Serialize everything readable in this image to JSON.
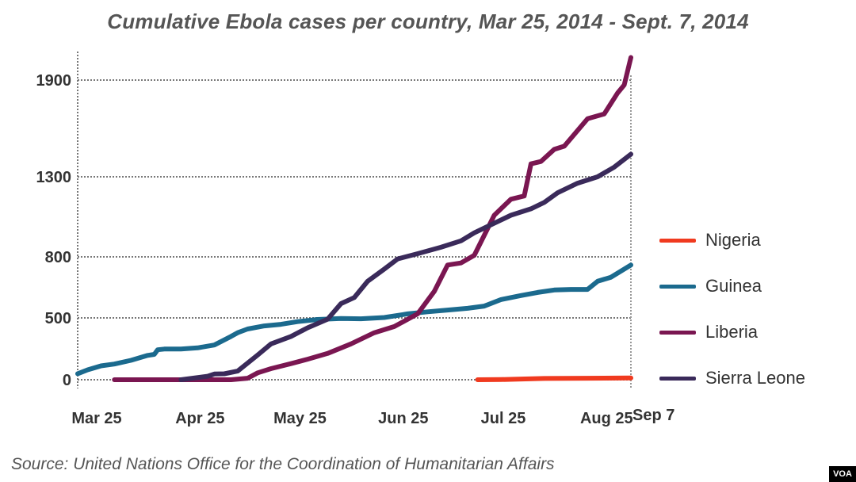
{
  "chart_data": {
    "type": "line",
    "title": "Cumulative Ebola cases per country, Mar 25, 2014 - Sept. 7, 2014",
    "xlabel": "",
    "ylabel": "",
    "xlim": [
      "2014-03-25",
      "2014-09-07"
    ],
    "x_ticks": [
      {
        "label": "Mar 25",
        "date": "2014-03-25"
      },
      {
        "label": "Apr 25",
        "date": "2014-04-25"
      },
      {
        "label": "May 25",
        "date": "2014-05-25"
      },
      {
        "label": "Jun 25",
        "date": "2014-06-25"
      },
      {
        "label": "Jul 25",
        "date": "2014-07-25"
      },
      {
        "label": "Aug 25",
        "date": "2014-08-25"
      },
      {
        "label": "Sep 7",
        "date": "2014-09-07"
      }
    ],
    "y_ticks": [
      0,
      500,
      800,
      1300,
      1900
    ],
    "grid": true,
    "legend_position": "right",
    "series": [
      {
        "name": "Nigeria",
        "color": "#f03a1f",
        "points": [
          [
            "2014-07-23",
            0
          ],
          [
            "2014-07-30",
            1
          ],
          [
            "2014-08-04",
            5
          ],
          [
            "2014-08-12",
            10
          ],
          [
            "2014-08-25",
            12
          ],
          [
            "2014-09-07",
            14
          ]
        ]
      },
      {
        "name": "Guinea",
        "color": "#1b6a8e",
        "points": [
          [
            "2014-03-25",
            49
          ],
          [
            "2014-03-28",
            80
          ],
          [
            "2014-04-01",
            112
          ],
          [
            "2014-04-05",
            127
          ],
          [
            "2014-04-10",
            157
          ],
          [
            "2014-04-15",
            197
          ],
          [
            "2014-04-17",
            205
          ],
          [
            "2014-04-18",
            242
          ],
          [
            "2014-04-20",
            248
          ],
          [
            "2014-04-25",
            248
          ],
          [
            "2014-04-30",
            258
          ],
          [
            "2014-05-05",
            281
          ],
          [
            "2014-05-10",
            350
          ],
          [
            "2014-05-12",
            380
          ],
          [
            "2014-05-15",
            410
          ],
          [
            "2014-05-20",
            435
          ],
          [
            "2014-05-25",
            448
          ],
          [
            "2014-05-30",
            470
          ],
          [
            "2014-06-05",
            487
          ],
          [
            "2014-06-12",
            495
          ],
          [
            "2014-06-18",
            493
          ],
          [
            "2014-06-25",
            502
          ],
          [
            "2014-07-02",
            520
          ],
          [
            "2014-07-08",
            530
          ],
          [
            "2014-07-15",
            540
          ],
          [
            "2014-07-20",
            547
          ],
          [
            "2014-07-25",
            558
          ],
          [
            "2014-07-30",
            590
          ],
          [
            "2014-08-05",
            610
          ],
          [
            "2014-08-10",
            625
          ],
          [
            "2014-08-15",
            637
          ],
          [
            "2014-08-20",
            640
          ],
          [
            "2014-08-25",
            640
          ],
          [
            "2014-08-28",
            680
          ],
          [
            "2014-09-01",
            700
          ],
          [
            "2014-09-07",
            760
          ]
        ]
      },
      {
        "name": "Liberia",
        "color": "#7a1651",
        "points": [
          [
            "2014-04-05",
            0
          ],
          [
            "2014-04-25",
            0
          ],
          [
            "2014-05-10",
            0
          ],
          [
            "2014-05-15",
            12
          ],
          [
            "2014-05-18",
            56
          ],
          [
            "2014-05-22",
            90
          ],
          [
            "2014-05-28",
            130
          ],
          [
            "2014-06-02",
            166
          ],
          [
            "2014-06-08",
            213
          ],
          [
            "2014-06-15",
            290
          ],
          [
            "2014-06-22",
            380
          ],
          [
            "2014-06-28",
            430
          ],
          [
            "2014-07-05",
            520
          ],
          [
            "2014-07-10",
            630
          ],
          [
            "2014-07-14",
            760
          ],
          [
            "2014-07-18",
            770
          ],
          [
            "2014-07-22",
            810
          ],
          [
            "2014-07-28",
            1060
          ],
          [
            "2014-08-02",
            1160
          ],
          [
            "2014-08-06",
            1180
          ],
          [
            "2014-08-08",
            1380
          ],
          [
            "2014-08-11",
            1395
          ],
          [
            "2014-08-15",
            1470
          ],
          [
            "2014-08-18",
            1490
          ],
          [
            "2014-08-25",
            1660
          ],
          [
            "2014-08-30",
            1690
          ],
          [
            "2014-09-03",
            1820
          ],
          [
            "2014-09-05",
            1870
          ],
          [
            "2014-09-07",
            2040
          ]
        ]
      },
      {
        "name": "Sierra Leone",
        "color": "#3a2a5a",
        "points": [
          [
            "2014-04-25",
            0
          ],
          [
            "2014-05-03",
            28
          ],
          [
            "2014-05-05",
            46
          ],
          [
            "2014-05-08",
            48
          ],
          [
            "2014-05-12",
            70
          ],
          [
            "2014-05-18",
            200
          ],
          [
            "2014-05-22",
            290
          ],
          [
            "2014-05-28",
            350
          ],
          [
            "2014-06-02",
            420
          ],
          [
            "2014-06-08",
            490
          ],
          [
            "2014-06-12",
            570
          ],
          [
            "2014-06-16",
            600
          ],
          [
            "2014-06-20",
            680
          ],
          [
            "2014-06-25",
            740
          ],
          [
            "2014-06-29",
            790
          ],
          [
            "2014-07-05",
            820
          ],
          [
            "2014-07-12",
            860
          ],
          [
            "2014-07-18",
            900
          ],
          [
            "2014-07-22",
            950
          ],
          [
            "2014-07-28",
            1010
          ],
          [
            "2014-08-02",
            1060
          ],
          [
            "2014-08-08",
            1100
          ],
          [
            "2014-08-12",
            1140
          ],
          [
            "2014-08-16",
            1200
          ],
          [
            "2014-08-22",
            1260
          ],
          [
            "2014-08-28",
            1300
          ],
          [
            "2014-09-02",
            1360
          ],
          [
            "2014-09-07",
            1440
          ]
        ]
      }
    ],
    "source": "Source: United Nations Office for the Coordination of Humanitarian Affairs",
    "logo": "VOA"
  }
}
